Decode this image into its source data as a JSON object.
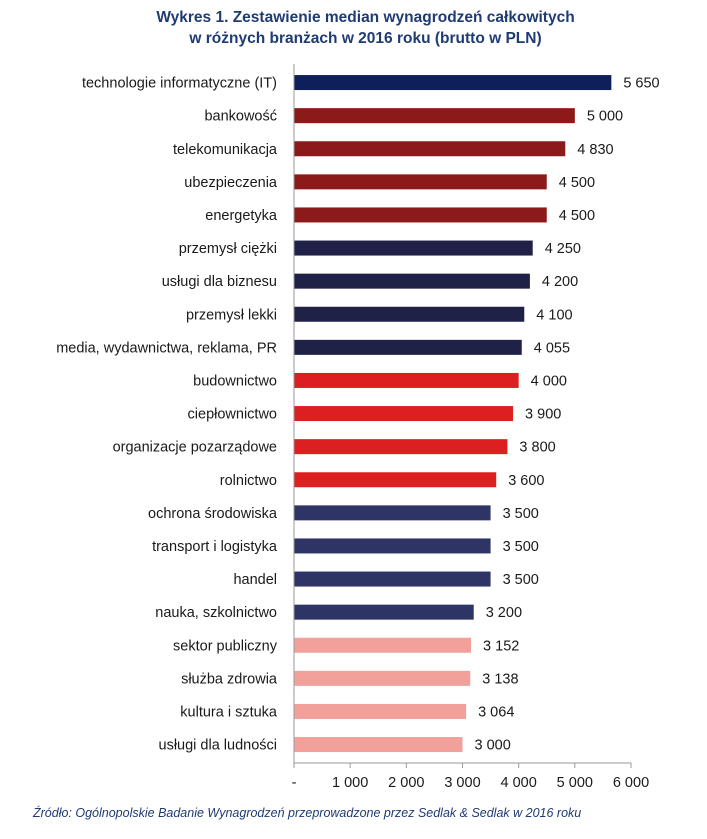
{
  "chart_data": {
    "type": "bar",
    "orientation": "horizontal",
    "title": "Wykres 1. Zestawienie median wynagrodzeń całkowitych",
    "subtitle": "w różnych branżach w 2016 roku (brutto w PLN)",
    "xlim": [
      0,
      6000
    ],
    "xticks": [
      "-",
      "1 000",
      "2 000",
      "3 000",
      "4 000",
      "5 000",
      "6 000"
    ],
    "grid": false,
    "categories": [
      {
        "label": "technologie informatyczne (IT)",
        "value": 5650,
        "value_label": "5 650",
        "color": "#0f1f5c"
      },
      {
        "label": "bankowość",
        "value": 5000,
        "value_label": "5 000",
        "color": "#8c1a1a"
      },
      {
        "label": "telekomunikacja",
        "value": 4830,
        "value_label": "4 830",
        "color": "#8c1a1a"
      },
      {
        "label": "ubezpieczenia",
        "value": 4500,
        "value_label": "4 500",
        "color": "#8c1a1a"
      },
      {
        "label": "energetyka",
        "value": 4500,
        "value_label": "4 500",
        "color": "#8c1a1a"
      },
      {
        "label": "przemysł ciężki",
        "value": 4250,
        "value_label": "4 250",
        "color": "#1f2146"
      },
      {
        "label": "usługi dla biznesu",
        "value": 4200,
        "value_label": "4 200",
        "color": "#1f2146"
      },
      {
        "label": "przemysł lekki",
        "value": 4100,
        "value_label": "4 100",
        "color": "#1f2146"
      },
      {
        "label": "media, wydawnictwa, reklama, PR",
        "value": 4055,
        "value_label": "4 055",
        "color": "#1f2146"
      },
      {
        "label": "budownictwo",
        "value": 4000,
        "value_label": "4 000",
        "color": "#dc2020"
      },
      {
        "label": "ciepłownictwo",
        "value": 3900,
        "value_label": "3 900",
        "color": "#dc2020"
      },
      {
        "label": "organizacje pozarządowe",
        "value": 3800,
        "value_label": "3 800",
        "color": "#dc2020"
      },
      {
        "label": "rolnictwo",
        "value": 3600,
        "value_label": "3 600",
        "color": "#dc2020"
      },
      {
        "label": "ochrona środowiska",
        "value": 3500,
        "value_label": "3 500",
        "color": "#2e3566"
      },
      {
        "label": "transport i logistyka",
        "value": 3500,
        "value_label": "3 500",
        "color": "#2e3566"
      },
      {
        "label": "handel",
        "value": 3500,
        "value_label": "3 500",
        "color": "#2e3566"
      },
      {
        "label": "nauka, szkolnictwo",
        "value": 3200,
        "value_label": "3 200",
        "color": "#2e3566"
      },
      {
        "label": "sektor publiczny",
        "value": 3152,
        "value_label": "3 152",
        "color": "#f2a09a"
      },
      {
        "label": "służba zdrowia",
        "value": 3138,
        "value_label": "3 138",
        "color": "#f2a09a"
      },
      {
        "label": "kultura i sztuka",
        "value": 3064,
        "value_label": "3 064",
        "color": "#f2a09a"
      },
      {
        "label": "usługi dla ludności",
        "value": 3000,
        "value_label": "3 000",
        "color": "#f2a09a"
      }
    ]
  },
  "source": "Źródło: Ogólnopolskie Badanie Wynagrodzeń przeprowadzone przez Sedlak & Sedlak w 2016 roku"
}
